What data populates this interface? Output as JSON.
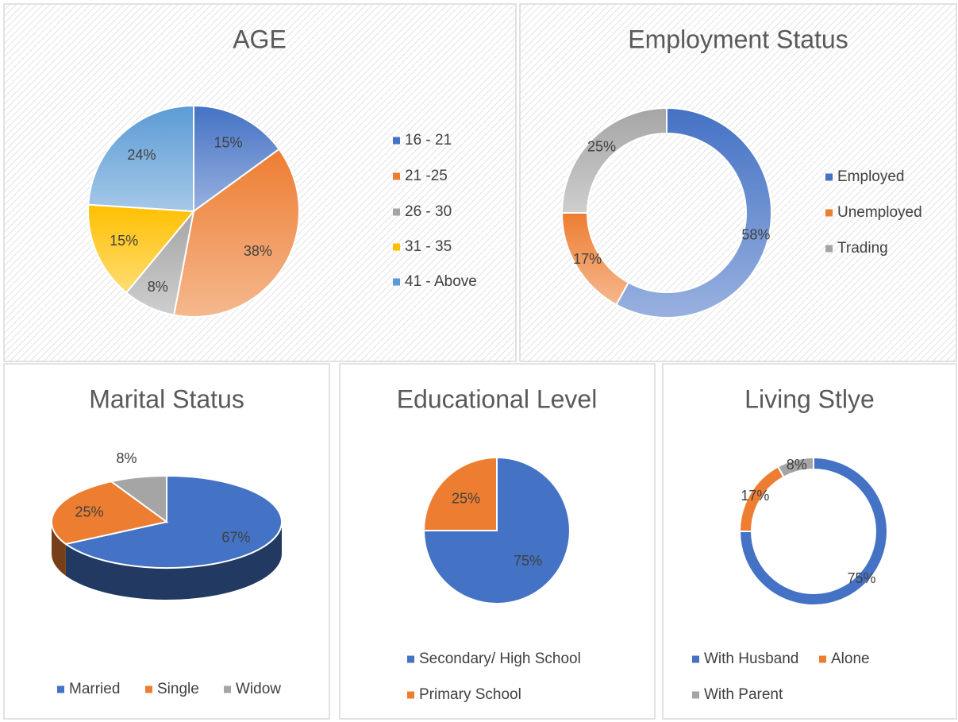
{
  "chart_data": [
    {
      "type": "pie",
      "title": "AGE",
      "categories": [
        "16 - 21",
        "21 -25",
        "26 - 30",
        "31 - 35",
        "41 - Above"
      ],
      "values": [
        15,
        38,
        8,
        15,
        24
      ],
      "value_labels": [
        "15%",
        "38%",
        "8%",
        "15%",
        "24%"
      ],
      "colors": [
        "#4472c4",
        "#ed7d31",
        "#a5a5a5",
        "#ffc000",
        "#5b9bd5"
      ],
      "gradient": true
    },
    {
      "type": "donut",
      "title": "Employment Status",
      "categories": [
        "Employed",
        "Unemployed",
        "Trading"
      ],
      "values": [
        58,
        17,
        25
      ],
      "value_labels": [
        "58%",
        "17%",
        "25%"
      ],
      "colors": [
        "#4472c4",
        "#ed7d31",
        "#a5a5a5"
      ],
      "gradient": true
    },
    {
      "type": "pie3d",
      "title": "Marital Status",
      "categories": [
        "Married",
        "Single",
        "Widow"
      ],
      "values": [
        67,
        25,
        8
      ],
      "value_labels": [
        "67%",
        "25%",
        "8%"
      ],
      "colors": [
        "#4472c4",
        "#ed7d31",
        "#a5a5a5"
      ],
      "gradient": false
    },
    {
      "type": "pie",
      "title": "Educational Level",
      "categories": [
        "Secondary/ High School",
        "Primary School"
      ],
      "values": [
        75,
        25
      ],
      "value_labels": [
        "75%",
        "25%"
      ],
      "colors": [
        "#4472c4",
        "#ed7d31"
      ],
      "gradient": false
    },
    {
      "type": "donut",
      "title": "Living Stlye",
      "categories": [
        "With Husband",
        "Alone",
        "With Parent"
      ],
      "values": [
        75,
        17,
        8
      ],
      "value_labels": [
        "75%",
        "17%",
        "8%"
      ],
      "colors": [
        "#4472c4",
        "#ed7d31",
        "#a5a5a5"
      ],
      "gradient": false
    }
  ]
}
